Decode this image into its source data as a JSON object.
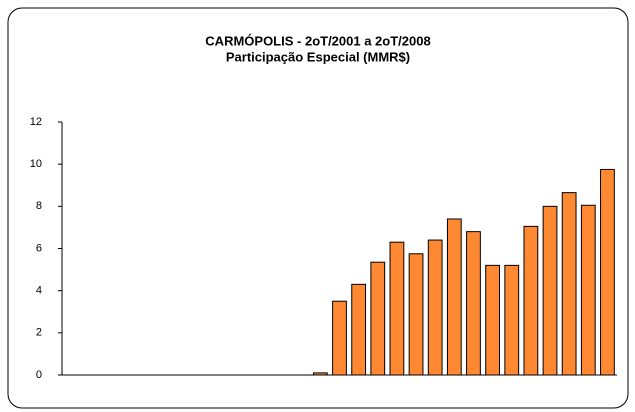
{
  "chart_data": {
    "type": "bar",
    "title": "CARMÓPOLIS - 2oT/2001 a 2oT/2008",
    "subtitle": "Participação Especial (MMR$)",
    "categories": [
      null,
      null,
      null,
      null,
      null,
      null,
      null,
      null,
      null,
      null,
      null,
      null,
      null,
      null,
      null,
      null,
      null,
      null,
      null,
      null,
      null,
      null,
      null,
      null,
      null,
      null,
      null,
      null,
      null
    ],
    "values": [
      0,
      0,
      0,
      0,
      0,
      0,
      0,
      0,
      0,
      0,
      0,
      0,
      0,
      0.1,
      3.5,
      4.3,
      5.35,
      6.3,
      5.75,
      6.4,
      7.4,
      6.8,
      5.2,
      5.2,
      7.05,
      8.0,
      8.65,
      8.05,
      9.75
    ],
    "color": "#ff8833",
    "ylim": [
      0,
      12
    ],
    "yticks": [
      0,
      2,
      4,
      6,
      8,
      10,
      12
    ],
    "grid": false
  }
}
